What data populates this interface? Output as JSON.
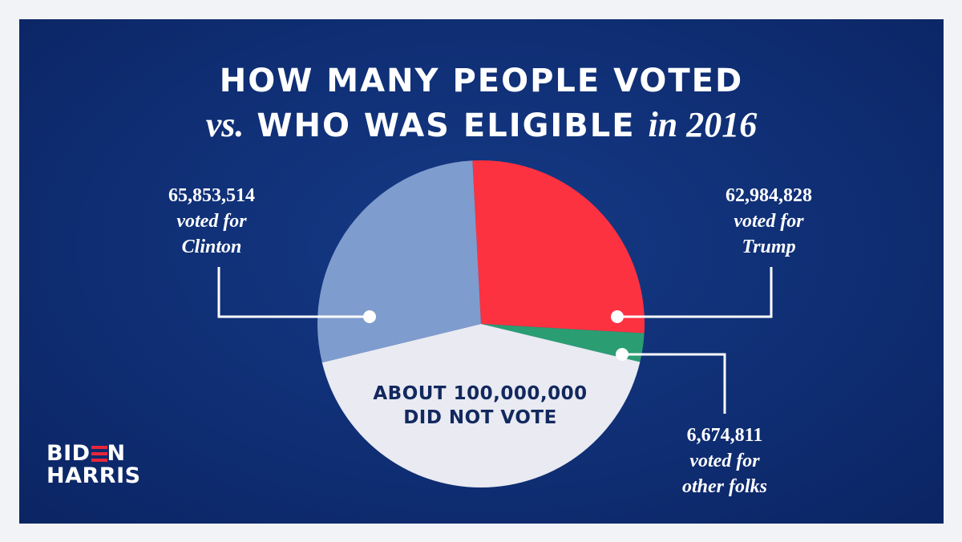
{
  "title": {
    "line1": "HOW MANY PEOPLE VOTED",
    "line2_prefix": "vs.",
    "line2_main": "WHO WAS ELIGIBLE",
    "line2_suffix": "in 2016"
  },
  "chart_data": {
    "type": "pie",
    "title": "HOW MANY PEOPLE VOTED vs. WHO WAS ELIGIBLE in 2016",
    "slices": [
      {
        "label": "voted for Trump",
        "value": 62984828,
        "value_text": "62,984,828",
        "line2": "voted for",
        "line3": "Trump",
        "color": "#fc3241"
      },
      {
        "label": "voted for other folks",
        "value": 6674811,
        "value_text": "6,674,811",
        "line2": "voted for",
        "line3": "other folks",
        "color": "#2a9d73"
      },
      {
        "label": "DID NOT VOTE",
        "value": 100000000,
        "value_text": "ABOUT 100,000,000",
        "line2": "DID NOT VOTE",
        "color": "#e9eaf2"
      },
      {
        "label": "voted for Clinton",
        "value": 65853514,
        "value_text": "65,853,514",
        "line2": "voted for",
        "line3": "Clinton",
        "color": "#7f9cce"
      }
    ]
  },
  "logo": {
    "line1_a": "BID",
    "line1_b": "N",
    "line2": "HARRIS",
    "accent": "#e8273a"
  },
  "colors": {
    "background": "#0f2e74",
    "page": "#f2f3f7",
    "text": "#ffffff",
    "dark_text": "#12285e"
  }
}
